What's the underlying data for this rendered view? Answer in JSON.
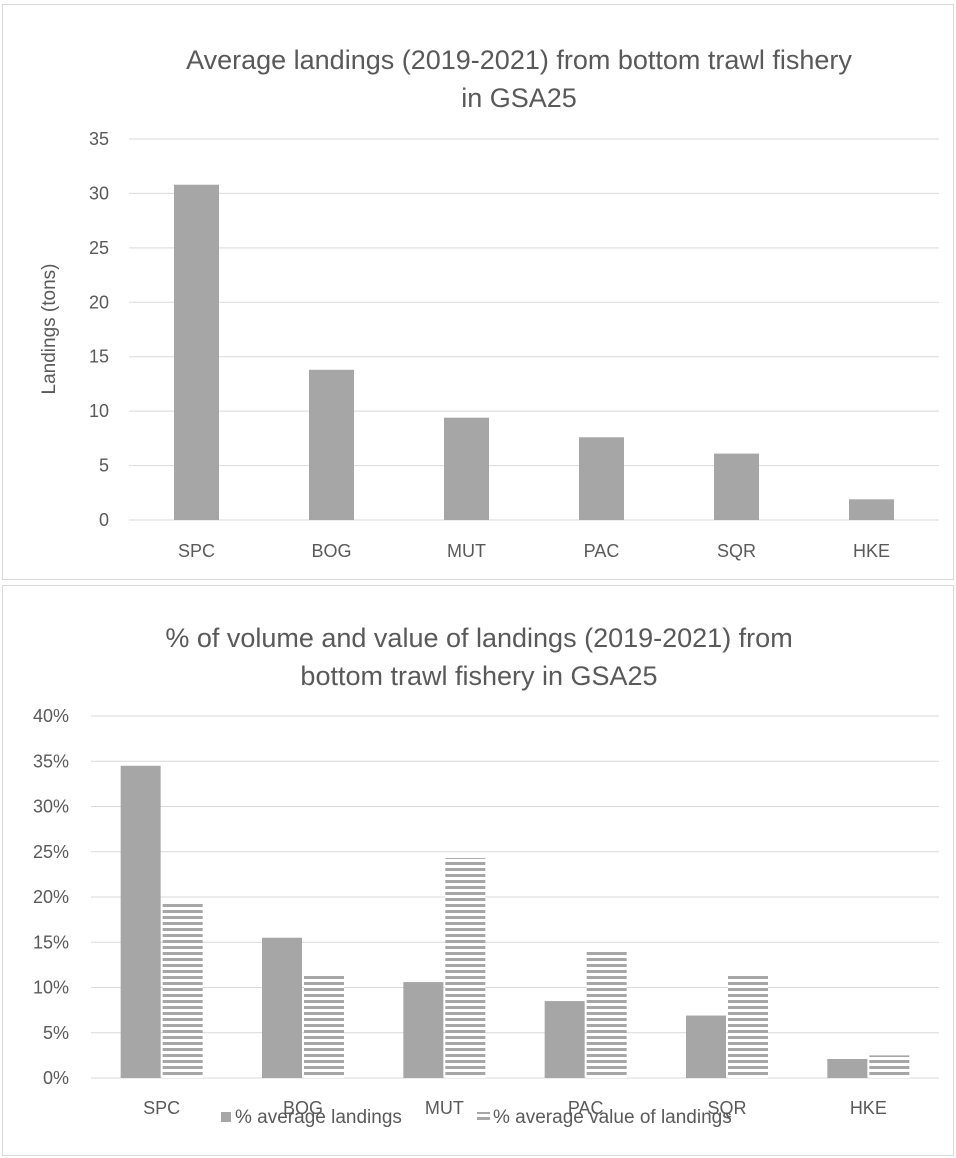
{
  "chart_data": [
    {
      "type": "bar",
      "title_lines": [
        "Average landings (2019-2021) from bottom trawl fishery",
        "in GSA25"
      ],
      "xlabel": "",
      "ylabel": "Landings (tons)",
      "categories": [
        "SPC",
        "BOG",
        "MUT",
        "PAC",
        "SQR",
        "HKE"
      ],
      "series": [
        {
          "values": [
            30.8,
            13.8,
            9.4,
            7.6,
            6.1,
            1.9
          ],
          "color": "#a6a6a6",
          "pattern": "solid"
        }
      ],
      "ylim": [
        0,
        35
      ],
      "yticks": [
        0,
        5,
        10,
        15,
        20,
        25,
        30,
        35
      ],
      "ytick_labels": [
        "0",
        "5",
        "10",
        "15",
        "20",
        "25",
        "30",
        "35"
      ],
      "grid": true,
      "legend": "none"
    },
    {
      "type": "bar",
      "title_lines": [
        "% of volume and value of landings (2019-2021) from",
        "bottom trawl fishery in GSA25"
      ],
      "xlabel": "",
      "ylabel": "",
      "categories": [
        "SPC",
        "BOG",
        "MUT",
        "PAC",
        "SQR",
        "HKE"
      ],
      "series": [
        {
          "name": "% average landings",
          "values": [
            34.5,
            15.5,
            10.6,
            8.5,
            6.9,
            2.1
          ],
          "color": "#a6a6a6",
          "pattern": "solid"
        },
        {
          "name": "% average value of landings",
          "values": [
            19.4,
            11.4,
            24.3,
            14.0,
            11.4,
            2.5
          ],
          "color": "#a6a6a6",
          "pattern": "horizontal-stripes"
        }
      ],
      "ylim": [
        0,
        40
      ],
      "yticks": [
        0,
        5,
        10,
        15,
        20,
        25,
        30,
        35,
        40
      ],
      "ytick_labels": [
        "0%",
        "5%",
        "10%",
        "15%",
        "20%",
        "25%",
        "30%",
        "35%",
        "40%"
      ],
      "grid": true,
      "legend": "bottom"
    }
  ]
}
